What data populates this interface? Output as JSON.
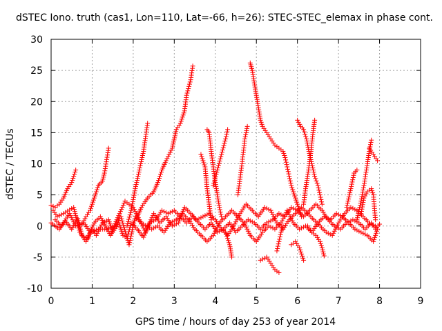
{
  "chart_data": {
    "type": "scatter",
    "title": "dSTEC Iono. truth (cas1, Lon=110, Lat=-66, h=26): STEC-STEC_elemax in phase cont.",
    "xlabel": "GPS time / hours of day 253 of year 2014",
    "ylabel": "dSTEC  / TECUs",
    "xlim": [
      0,
      9
    ],
    "ylim": [
      -10,
      30
    ],
    "xticks": [
      0,
      1,
      2,
      3,
      4,
      5,
      6,
      7,
      8,
      9
    ],
    "yticks": [
      -10,
      -5,
      0,
      5,
      10,
      15,
      20,
      25,
      30
    ],
    "grid": true,
    "marker": "+",
    "color": "#ff0000",
    "arcs": [
      [
        [
          0.0,
          3.3
        ],
        [
          0.1,
          3.0
        ],
        [
          0.2,
          3.5
        ],
        [
          0.3,
          4.5
        ],
        [
          0.4,
          6.0
        ],
        [
          0.5,
          7.0
        ],
        [
          0.6,
          9.0
        ]
      ],
      [
        [
          0.75,
          0.2
        ],
        [
          0.85,
          1.5
        ],
        [
          0.95,
          2.5
        ],
        [
          1.05,
          4.5
        ],
        [
          1.15,
          6.5
        ],
        [
          1.25,
          7.2
        ],
        [
          1.3,
          8.5
        ],
        [
          1.4,
          12.5
        ]
      ],
      [
        [
          1.85,
          0.0
        ],
        [
          1.95,
          2.5
        ],
        [
          2.05,
          6.0
        ],
        [
          2.15,
          9.0
        ],
        [
          2.25,
          12.0
        ],
        [
          2.35,
          16.5
        ]
      ],
      [
        [
          2.0,
          0.5
        ],
        [
          2.1,
          1.5
        ],
        [
          2.2,
          3.0
        ],
        [
          2.35,
          4.5
        ],
        [
          2.5,
          5.5
        ],
        [
          2.6,
          7.0
        ],
        [
          2.7,
          9.0
        ],
        [
          2.8,
          10.5
        ],
        [
          2.95,
          12.5
        ],
        [
          3.05,
          15.5
        ],
        [
          3.15,
          16.5
        ],
        [
          3.25,
          18.5
        ],
        [
          3.3,
          21.0
        ],
        [
          3.4,
          23.5
        ],
        [
          3.45,
          25.7
        ]
      ],
      [
        [
          3.65,
          11.5
        ],
        [
          3.75,
          9.5
        ],
        [
          3.8,
          6.0
        ],
        [
          3.85,
          3.5
        ],
        [
          3.9,
          1.0
        ]
      ],
      [
        [
          3.8,
          15.5
        ],
        [
          3.85,
          15.0
        ],
        [
          3.9,
          12.0
        ],
        [
          3.95,
          9.5
        ],
        [
          4.0,
          7.0
        ],
        [
          4.05,
          5.0
        ],
        [
          4.1,
          3.0
        ],
        [
          4.15,
          1.5
        ]
      ],
      [
        [
          3.95,
          6.5
        ],
        [
          4.05,
          9.0
        ],
        [
          4.15,
          11.5
        ],
        [
          4.25,
          14.0
        ],
        [
          4.3,
          15.5
        ]
      ],
      [
        [
          4.25,
          -1.0
        ],
        [
          4.35,
          -3.0
        ],
        [
          4.4,
          -5.0
        ]
      ],
      [
        [
          4.55,
          5.0
        ],
        [
          4.65,
          10.0
        ],
        [
          4.72,
          14.0
        ],
        [
          4.78,
          16.0
        ]
      ],
      [
        [
          4.85,
          26.2
        ],
        [
          4.9,
          25.0
        ],
        [
          4.95,
          23.0
        ],
        [
          5.0,
          21.0
        ],
        [
          5.05,
          19.0
        ],
        [
          5.1,
          17.0
        ],
        [
          5.15,
          16.0
        ],
        [
          5.25,
          15.0
        ],
        [
          5.35,
          14.0
        ],
        [
          5.45,
          13.0
        ],
        [
          5.55,
          12.5
        ],
        [
          5.65,
          12.0
        ],
        [
          5.7,
          11.0
        ],
        [
          5.75,
          9.5
        ],
        [
          5.8,
          8.0
        ],
        [
          5.85,
          6.5
        ],
        [
          5.9,
          5.5
        ],
        [
          5.95,
          4.5
        ],
        [
          6.0,
          3.5
        ],
        [
          6.05,
          2.5
        ],
        [
          6.1,
          1.5
        ]
      ],
      [
        [
          6.0,
          17.0
        ],
        [
          6.08,
          16.0
        ],
        [
          6.15,
          15.5
        ],
        [
          6.22,
          14.0
        ],
        [
          6.28,
          12.0
        ],
        [
          6.35,
          10.0
        ],
        [
          6.42,
          8.0
        ],
        [
          6.5,
          6.5
        ],
        [
          6.55,
          5.0
        ],
        [
          6.6,
          3.5
        ]
      ],
      [
        [
          6.15,
          3.5
        ],
        [
          6.2,
          6.0
        ],
        [
          6.27,
          9.0
        ],
        [
          6.33,
          12.0
        ],
        [
          6.38,
          15.0
        ],
        [
          6.42,
          17.0
        ]
      ],
      [
        [
          6.25,
          0.0
        ],
        [
          6.35,
          -1.0
        ],
        [
          6.45,
          -1.5
        ],
        [
          6.55,
          -2.5
        ],
        [
          6.6,
          -3.5
        ],
        [
          6.65,
          -4.8
        ]
      ],
      [
        [
          5.1,
          -5.5
        ],
        [
          5.25,
          -5.0
        ],
        [
          5.35,
          -6.0
        ],
        [
          5.45,
          -7.0
        ],
        [
          5.55,
          -7.5
        ]
      ],
      [
        [
          5.5,
          -4.0
        ],
        [
          5.55,
          -2.5
        ],
        [
          5.6,
          -1.0
        ],
        [
          5.65,
          0.0
        ]
      ],
      [
        [
          5.85,
          -3.0
        ],
        [
          5.95,
          -2.5
        ],
        [
          6.05,
          -3.5
        ],
        [
          6.1,
          -4.5
        ],
        [
          6.15,
          -5.5
        ]
      ],
      [
        [
          7.45,
          1.0
        ],
        [
          7.55,
          4.0
        ],
        [
          7.62,
          6.5
        ],
        [
          7.68,
          9.0
        ],
        [
          7.75,
          12.0
        ],
        [
          7.8,
          13.8
        ]
      ],
      [
        [
          7.75,
          12.5
        ],
        [
          7.85,
          11.5
        ],
        [
          7.95,
          10.5
        ]
      ],
      [
        [
          7.55,
          2.0
        ],
        [
          7.62,
          4.5
        ],
        [
          7.7,
          5.5
        ],
        [
          7.8,
          6.0
        ],
        [
          7.85,
          5.0
        ],
        [
          7.9,
          1.0
        ]
      ],
      [
        [
          7.2,
          3.0
        ],
        [
          7.3,
          6.0
        ],
        [
          7.38,
          8.5
        ],
        [
          7.45,
          9.0
        ]
      ],
      [
        [
          0.0,
          0.5
        ],
        [
          0.2,
          -0.5
        ],
        [
          0.35,
          0.8
        ],
        [
          0.5,
          -0.5
        ],
        [
          0.65,
          1.2
        ],
        [
          0.75,
          -1.5
        ],
        [
          0.9,
          -2.0
        ],
        [
          1.0,
          -0.5
        ],
        [
          1.1,
          -1.5
        ],
        [
          1.25,
          0.5
        ],
        [
          1.4,
          1.0
        ],
        [
          1.5,
          -1.0
        ],
        [
          1.65,
          0.5
        ],
        [
          1.75,
          -1.5
        ],
        [
          1.85,
          -2.0
        ],
        [
          1.95,
          0.5
        ],
        [
          2.1,
          -0.5
        ],
        [
          2.25,
          -1.8
        ],
        [
          2.4,
          0.5
        ],
        [
          2.55,
          1.0
        ],
        [
          2.7,
          2.5
        ],
        [
          2.85,
          2.0
        ],
        [
          3.0,
          2.5
        ],
        [
          3.15,
          1.5
        ],
        [
          3.3,
          0.5
        ],
        [
          3.45,
          1.5
        ],
        [
          3.6,
          0.5
        ],
        [
          3.75,
          -0.5
        ],
        [
          3.9,
          0.5
        ],
        [
          4.05,
          -1.0
        ],
        [
          4.2,
          -0.5
        ],
        [
          4.35,
          0.5
        ],
        [
          4.5,
          -1.0
        ],
        [
          4.65,
          0.0
        ],
        [
          4.8,
          1.0
        ],
        [
          4.95,
          0.5
        ],
        [
          5.1,
          -0.5
        ],
        [
          5.25,
          0.5
        ],
        [
          5.4,
          1.0
        ],
        [
          5.55,
          2.0
        ],
        [
          5.7,
          1.5
        ],
        [
          5.85,
          3.0
        ],
        [
          6.0,
          2.5
        ],
        [
          6.15,
          1.5
        ],
        [
          6.3,
          2.5
        ],
        [
          6.45,
          3.5
        ],
        [
          6.6,
          2.5
        ],
        [
          6.75,
          1.0
        ],
        [
          6.9,
          0.0
        ],
        [
          7.05,
          -0.5
        ],
        [
          7.2,
          0.5
        ],
        [
          7.35,
          1.0
        ],
        [
          7.5,
          0.5
        ],
        [
          7.65,
          -0.5
        ],
        [
          7.8,
          0.5
        ],
        [
          7.9,
          -0.5
        ],
        [
          8.0,
          0.3
        ]
      ],
      [
        [
          0.1,
          1.0
        ],
        [
          0.25,
          0.0
        ],
        [
          0.45,
          2.0
        ],
        [
          0.6,
          0.0
        ],
        [
          0.8,
          0.5
        ],
        [
          0.95,
          -1.0
        ],
        [
          1.15,
          -0.5
        ],
        [
          1.35,
          -0.5
        ],
        [
          1.55,
          0.0
        ],
        [
          1.7,
          1.5
        ],
        [
          1.9,
          -3.0
        ],
        [
          2.05,
          1.5
        ],
        [
          2.2,
          0.5
        ],
        [
          2.45,
          -0.5
        ],
        [
          2.6,
          0.0
        ],
        [
          2.75,
          -1.0
        ],
        [
          2.9,
          0.5
        ],
        [
          3.05,
          1.0
        ],
        [
          3.2,
          2.0
        ],
        [
          3.35,
          1.0
        ],
        [
          3.5,
          -0.5
        ],
        [
          3.65,
          -1.5
        ],
        [
          3.8,
          -2.5
        ],
        [
          3.95,
          -1.5
        ],
        [
          4.1,
          0.5
        ],
        [
          4.25,
          1.5
        ],
        [
          4.4,
          2.5
        ],
        [
          4.55,
          1.5
        ],
        [
          4.7,
          0.5
        ],
        [
          4.85,
          -1.5
        ],
        [
          5.0,
          -2.5
        ],
        [
          5.15,
          -1.0
        ],
        [
          5.3,
          0.0
        ],
        [
          5.45,
          -0.5
        ],
        [
          5.6,
          0.5
        ],
        [
          5.75,
          2.5
        ],
        [
          5.9,
          0.5
        ],
        [
          6.05,
          -0.5
        ],
        [
          6.2,
          0.0
        ],
        [
          6.35,
          -1.0
        ],
        [
          6.5,
          0.5
        ],
        [
          6.65,
          1.5
        ],
        [
          6.8,
          1.0
        ],
        [
          6.95,
          2.0
        ],
        [
          7.1,
          1.5
        ],
        [
          7.25,
          0.5
        ],
        [
          7.4,
          -0.5
        ],
        [
          7.55,
          -1.0
        ],
        [
          7.7,
          -1.5
        ],
        [
          7.85,
          -2.5
        ],
        [
          7.95,
          -0.5
        ]
      ],
      [
        [
          0.05,
          2.5
        ],
        [
          0.15,
          1.5
        ],
        [
          0.3,
          2.0
        ],
        [
          0.55,
          3.0
        ],
        [
          0.7,
          -1.0
        ],
        [
          0.85,
          -2.5
        ],
        [
          1.05,
          0.5
        ],
        [
          1.2,
          1.5
        ],
        [
          1.45,
          -1.5
        ],
        [
          1.6,
          1.0
        ],
        [
          1.8,
          4.0
        ],
        [
          1.9,
          3.5
        ],
        [
          2.0,
          3.0
        ],
        [
          2.15,
          1.0
        ],
        [
          2.3,
          -1.0
        ],
        [
          2.5,
          2.0
        ],
        [
          2.65,
          0.5
        ],
        [
          2.8,
          1.5
        ],
        [
          2.95,
          0.0
        ],
        [
          3.1,
          0.5
        ],
        [
          3.25,
          3.0
        ],
        [
          3.4,
          2.0
        ],
        [
          3.55,
          1.0
        ],
        [
          3.7,
          1.5
        ],
        [
          3.85,
          2.0
        ],
        [
          4.0,
          1.0
        ],
        [
          4.15,
          -0.5
        ],
        [
          4.3,
          -1.5
        ],
        [
          4.45,
          0.0
        ],
        [
          4.6,
          2.0
        ],
        [
          4.75,
          3.5
        ],
        [
          4.9,
          2.5
        ],
        [
          5.05,
          1.5
        ],
        [
          5.2,
          3.0
        ],
        [
          5.35,
          2.5
        ],
        [
          5.5,
          0.5
        ],
        [
          5.65,
          -0.5
        ],
        [
          5.8,
          1.0
        ],
        [
          5.95,
          2.0
        ],
        [
          6.1,
          3.0
        ],
        [
          6.25,
          2.0
        ],
        [
          6.4,
          1.0
        ],
        [
          6.55,
          0.0
        ],
        [
          6.7,
          -1.0
        ],
        [
          6.85,
          -1.5
        ],
        [
          7.0,
          0.5
        ],
        [
          7.15,
          2.0
        ],
        [
          7.3,
          3.0
        ],
        [
          7.45,
          2.5
        ],
        [
          7.6,
          1.5
        ],
        [
          7.75,
          0.5
        ],
        [
          7.9,
          0.0
        ]
      ]
    ]
  }
}
